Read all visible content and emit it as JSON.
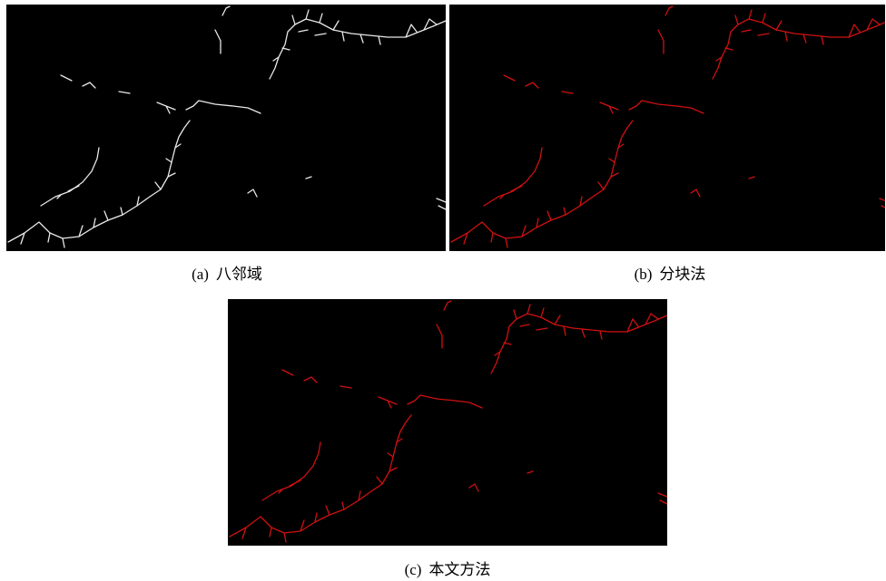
{
  "figures": [
    {
      "label": "(a)",
      "caption": "八邻域"
    },
    {
      "label": "(b)",
      "caption": "分块法"
    },
    {
      "label": "(c)",
      "caption": "本文方法"
    }
  ]
}
